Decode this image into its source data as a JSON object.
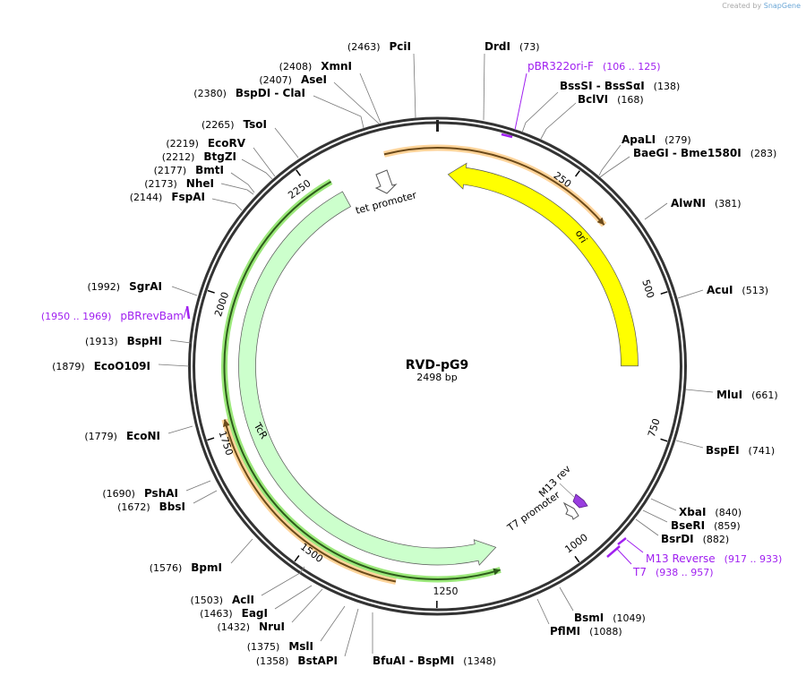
{
  "credit": {
    "prefix": "Created by",
    "brand": "SnapGene"
  },
  "plasmid": {
    "name": "RVD-pG9",
    "size_label": "2498 bp",
    "length": 2498
  },
  "ticks": [
    "250",
    "500",
    "750",
    "1000",
    "1250",
    "1500",
    "1750",
    "2000",
    "2250"
  ],
  "features": [
    {
      "name": "ori",
      "label": "ori",
      "start": 22,
      "end": 624,
      "direction": "reverse",
      "color": "#ffff00"
    },
    {
      "name": "TcR",
      "label": "TcR",
      "start": 1125,
      "end": 2300,
      "direction": "reverse",
      "color": "#ccffcc"
    },
    {
      "name": "tet promoter",
      "label": "tet promoter",
      "color": "#ffffff"
    },
    {
      "name": "T7 promoter",
      "label": "T7 promoter",
      "color": "#ffffff"
    },
    {
      "name": "M13 rev",
      "label": "M13 rev",
      "color": "#993de0"
    }
  ],
  "orfs": [
    {
      "start": 2400,
      "end": 345,
      "color": "#f5a623"
    },
    {
      "start": 1325,
      "end": 1776,
      "color": "#f5a623"
    },
    {
      "start": 1130,
      "end": 2290,
      "color": "#2d5a1b"
    }
  ],
  "sites": [
    {
      "name": "PciI",
      "pos": "(2463)"
    },
    {
      "name": "XmnI",
      "pos": "(2408)"
    },
    {
      "name": "AseI",
      "pos": "(2407)"
    },
    {
      "name": "BspDI  - ClaI",
      "pos": "(2380)"
    },
    {
      "name": "TsoI",
      "pos": "(2265)"
    },
    {
      "name": "EcoRV",
      "pos": "(2219)"
    },
    {
      "name": "BtgZI",
      "pos": "(2212)"
    },
    {
      "name": "BmtI",
      "pos": "(2177)"
    },
    {
      "name": "NheI",
      "pos": "(2173)"
    },
    {
      "name": "FspAI",
      "pos": "(2144)"
    },
    {
      "name": "SgrAI",
      "pos": "(1992)"
    },
    {
      "name": "BspHI",
      "pos": "(1913)"
    },
    {
      "name": "EcoO109I",
      "pos": "(1879)"
    },
    {
      "name": "EcoNI",
      "pos": "(1779)"
    },
    {
      "name": "PshAI",
      "pos": "(1690)"
    },
    {
      "name": "BbsI",
      "pos": "(1672)"
    },
    {
      "name": "BpmI",
      "pos": "(1576)"
    },
    {
      "name": "AclI",
      "pos": "(1503)"
    },
    {
      "name": "EagI",
      "pos": "(1463)"
    },
    {
      "name": "NruI",
      "pos": "(1432)"
    },
    {
      "name": "MslI",
      "pos": "(1375)"
    },
    {
      "name": "BstAPI",
      "pos": "(1358)"
    },
    {
      "name": "BfuAI  - BspMI",
      "pos": "(1348)"
    },
    {
      "name": "DrdI",
      "pos": "(73)"
    },
    {
      "name": "BssSI  - BssSαI",
      "pos": "(138)"
    },
    {
      "name": "BclVI",
      "pos": "(168)"
    },
    {
      "name": "ApaLI",
      "pos": "(279)"
    },
    {
      "name": "BaeGI  - Bme1580I",
      "pos": "(283)"
    },
    {
      "name": "AlwNI",
      "pos": "(381)"
    },
    {
      "name": "AcuI",
      "pos": "(513)"
    },
    {
      "name": "MluI",
      "pos": "(661)"
    },
    {
      "name": "BspEI",
      "pos": "(741)"
    },
    {
      "name": "XbaI",
      "pos": "(840)"
    },
    {
      "name": "BseRI",
      "pos": "(859)"
    },
    {
      "name": "BsrDI",
      "pos": "(882)"
    },
    {
      "name": "BsmI",
      "pos": "(1049)"
    },
    {
      "name": "PflMI",
      "pos": "(1088)"
    }
  ],
  "primers": [
    {
      "name": "pBR322ori-F",
      "range": "(106 .. 125)"
    },
    {
      "name": "pBRrevBam",
      "range": "(1950 .. 1969)"
    },
    {
      "name": "M13 Reverse",
      "range": "(917 .. 933)"
    },
    {
      "name": "T7",
      "range": "(938 .. 957)"
    }
  ]
}
